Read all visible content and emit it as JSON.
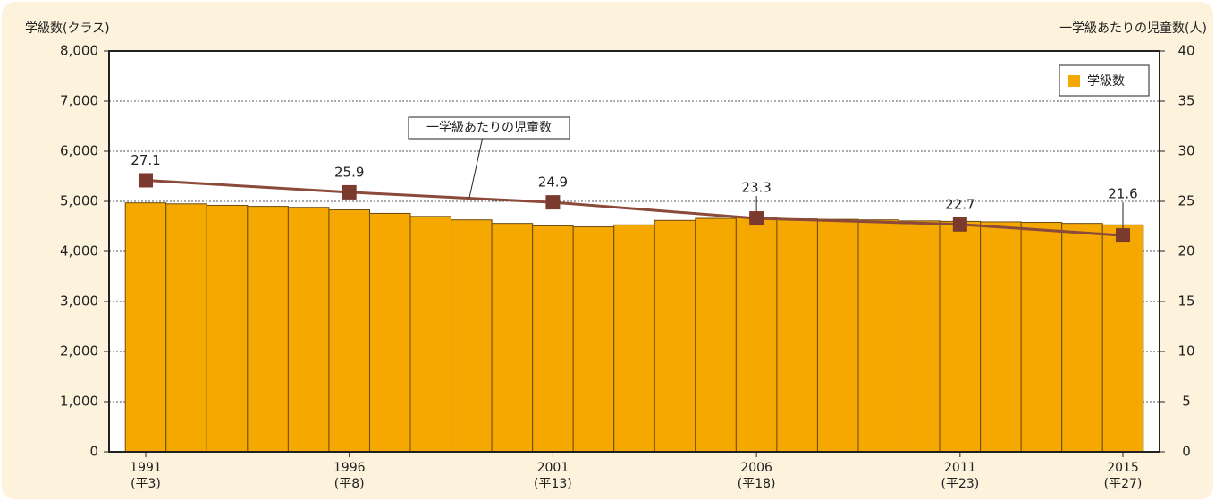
{
  "chart_data": {
    "type": "bar",
    "y_label": "学級数(クラス)",
    "y2_label": "一学級あたりの児童数(人)",
    "x": [
      1991,
      1992,
      1993,
      1994,
      1995,
      1996,
      1997,
      1998,
      1999,
      2000,
      2001,
      2002,
      2003,
      2004,
      2005,
      2006,
      2007,
      2008,
      2009,
      2010,
      2011,
      2012,
      2013,
      2014,
      2015
    ],
    "xlim": [
      1990.1,
      2015.9
    ],
    "xticks": [
      {
        "value": 1991,
        "label": "1991",
        "sublabel": "(平3)"
      },
      {
        "value": 1996,
        "label": "1996",
        "sublabel": "(平8)"
      },
      {
        "value": 2001,
        "label": "2001",
        "sublabel": "(平13)"
      },
      {
        "value": 2006,
        "label": "2006",
        "sublabel": "(平18)"
      },
      {
        "value": 2011,
        "label": "2011",
        "sublabel": "(平23)"
      },
      {
        "value": 2015,
        "label": "2015",
        "sublabel": "(平27)"
      }
    ],
    "ylim": [
      0,
      8000
    ],
    "yticks": [
      0,
      {
        "value": 1000,
        "label": "1,000"
      },
      {
        "value": 2000,
        "label": "2,000"
      },
      {
        "value": 3000,
        "label": "3,000"
      },
      {
        "value": 4000,
        "label": "4,000"
      },
      {
        "value": 5000,
        "label": "5,000"
      },
      {
        "value": 6000,
        "label": "6,000"
      },
      {
        "value": 7000,
        "label": "7,000"
      },
      {
        "value": 8000,
        "label": "8,000"
      }
    ],
    "y2lim": [
      0,
      40
    ],
    "y2ticks": [
      0,
      5,
      10,
      15,
      20,
      25,
      30,
      35,
      40
    ],
    "grid": true,
    "legend": "upper right",
    "series": [
      {
        "name": "学級数",
        "type": "bar",
        "color": "#f5a800",
        "values": [
          4970,
          4950,
          4920,
          4900,
          4880,
          4830,
          4760,
          4700,
          4630,
          4560,
          4510,
          4490,
          4530,
          4620,
          4660,
          4680,
          4650,
          4640,
          4630,
          4610,
          4600,
          4590,
          4580,
          4560,
          4530
        ]
      },
      {
        "name": "一学級あたりの児童数",
        "type": "line",
        "color": "#8b4a3a",
        "axis": "y2",
        "x": [
          1991,
          1996,
          2001,
          2006,
          2011,
          2015
        ],
        "values": [
          27.1,
          25.9,
          24.9,
          23.3,
          22.7,
          21.6
        ]
      }
    ]
  }
}
